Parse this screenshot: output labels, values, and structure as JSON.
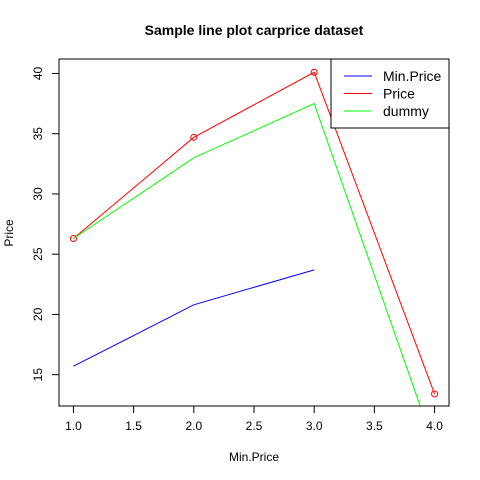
{
  "chart_data": {
    "type": "line",
    "title": "Sample line plot  carprice dataset",
    "xlabel": "Min.Price",
    "ylabel": "Price",
    "xlim": [
      0.88,
      4.12
    ],
    "ylim": [
      12.4,
      41.2
    ],
    "x_ticks": [
      "1.0",
      "1.5",
      "2.0",
      "2.5",
      "3.0",
      "3.5",
      "4.0"
    ],
    "y_ticks": [
      "15",
      "20",
      "25",
      "30",
      "35",
      "40"
    ],
    "grid": false,
    "legend_position": "top-right",
    "series": [
      {
        "name": "Min.Price",
        "color": "#0000ff",
        "markers": false,
        "x": [
          1,
          2,
          3
        ],
        "y": [
          15.7,
          20.8,
          23.7
        ]
      },
      {
        "name": "Price",
        "color": "#ff0000",
        "markers": true,
        "x": [
          1,
          2,
          3,
          4
        ],
        "y": [
          26.3,
          34.7,
          40.1,
          13.4
        ]
      },
      {
        "name": "dummy",
        "color": "#00ff00",
        "markers": false,
        "x": [
          1,
          2,
          3,
          4
        ],
        "y": [
          26.3,
          33.0,
          37.5,
          9.0
        ]
      }
    ]
  }
}
